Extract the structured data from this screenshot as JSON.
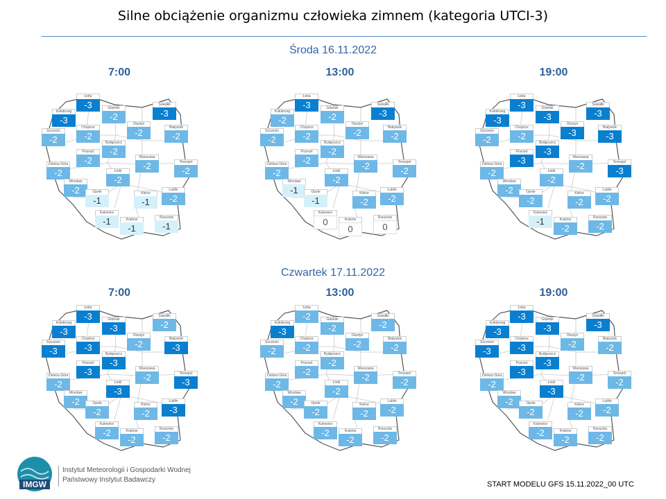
{
  "title": "Silne obciążenie organizmu człowieka zimnem (kategoria UTCI-3)",
  "days": [
    {
      "label": "Środa 16.11.2022",
      "panels": [
        {
          "time": "7:00",
          "values": {
            "leba": "-3",
            "gdansk": "-2",
            "suwalki": "-3",
            "kolobrzeg": "-3",
            "szczecin": "-2",
            "chojnice": "-2",
            "olsztyn": "-2",
            "bialystok": "-2",
            "bydgoszcz": "-2",
            "poznan": "-2",
            "zielona_gora": "-2",
            "warszawa": "-2",
            "terespol": "-2",
            "lodz": "-2",
            "wroclaw": "-2",
            "opole": "-1",
            "kielce": "-1",
            "lublin": "-2",
            "katowice": "-1",
            "krakow": "-1",
            "rzeszow": "-1"
          }
        },
        {
          "time": "13:00",
          "values": {
            "leba": "-3",
            "gdansk": "-2",
            "suwalki": "-3",
            "kolobrzeg": "-2",
            "szczecin": "-2",
            "chojnice": "-2",
            "olsztyn": "-2",
            "bialystok": "-2",
            "bydgoszcz": "-2",
            "poznan": "-2",
            "zielona_gora": "-2",
            "warszawa": "-2",
            "terespol": "-2",
            "lodz": "-2",
            "wroclaw": "-1",
            "opole": "-1",
            "kielce": "-2",
            "lublin": "-2",
            "katowice": "0",
            "krakow": "0",
            "rzeszow": "0"
          }
        },
        {
          "time": "19:00",
          "values": {
            "leba": "-3",
            "gdansk": "-3",
            "suwalki": "-3",
            "kolobrzeg": "-3",
            "szczecin": "-2",
            "chojnice": "-2",
            "olsztyn": "-3",
            "bialystok": "-3",
            "bydgoszcz": "-3",
            "poznan": "-3",
            "zielona_gora": "-2",
            "warszawa": "-2",
            "terespol": "-3",
            "lodz": "-2",
            "wroclaw": "-2",
            "opole": "-2",
            "kielce": "-2",
            "lublin": "-2",
            "katowice": "-1",
            "krakow": "-2",
            "rzeszow": "-2"
          }
        }
      ]
    },
    {
      "label": "Czwartek 17.11.2022",
      "panels": [
        {
          "time": "7:00",
          "values": {
            "leba": "-3",
            "gdansk": "-3",
            "suwalki": "-2",
            "kolobrzeg": "-3",
            "szczecin": "-3",
            "chojnice": "-3",
            "olsztyn": "-2",
            "bialystok": "-3",
            "bydgoszcz": "-3",
            "poznan": "-3",
            "zielona_gora": "-2",
            "warszawa": "-2",
            "terespol": "-3",
            "lodz": "-3",
            "wroclaw": "-2",
            "opole": "-2",
            "kielce": "-2",
            "lublin": "-3",
            "katowice": "-2",
            "krakow": "-2",
            "rzeszow": "-2"
          }
        },
        {
          "time": "13:00",
          "values": {
            "leba": "-2",
            "gdansk": "-2",
            "suwalki": "-2",
            "kolobrzeg": "-3",
            "szczecin": "-2",
            "chojnice": "-2",
            "olsztyn": "-2",
            "bialystok": "-2",
            "bydgoszcz": "-2",
            "poznan": "-2",
            "zielona_gora": "-2",
            "warszawa": "-2",
            "terespol": "-2",
            "lodz": "-2",
            "wroclaw": "-2",
            "opole": "-2",
            "kielce": "-2",
            "lublin": "-2",
            "katowice": "-2",
            "krakow": "-2",
            "rzeszow": "-2"
          }
        },
        {
          "time": "19:00",
          "values": {
            "leba": "-3",
            "gdansk": "-3",
            "suwalki": "-3",
            "kolobrzeg": "-3",
            "szczecin": "-3",
            "chojnice": "-3",
            "olsztyn": "-2",
            "bialystok": "-2",
            "bydgoszcz": "-3",
            "poznan": "-3",
            "zielona_gora": "-2",
            "warszawa": "-2",
            "terespol": "-2",
            "lodz": "-3",
            "wroclaw": "-2",
            "opole": "-2",
            "kielce": "-2",
            "lublin": "-2",
            "katowice": "-2",
            "krakow": "-2",
            "rzeszow": "-2"
          }
        }
      ]
    }
  ],
  "city_names": {
    "leba": "Łeba",
    "gdansk": "Gdańsk",
    "suwalki": "Suwałki",
    "kolobrzeg": "Kołobrzeg",
    "szczecin": "Szczecin",
    "chojnice": "Chojnice",
    "olsztyn": "Olsztyn",
    "bialystok": "Białystok",
    "bydgoszcz": "Bydgoszcz",
    "poznan": "Poznań",
    "zielona_gora": "Zielona Góra",
    "warszawa": "Warszawa",
    "terespol": "Terespol",
    "lodz": "Łódź",
    "wroclaw": "Wrocław",
    "opole": "Opole",
    "kielce": "Kielce",
    "lublin": "Lublin",
    "katowice": "Katowice",
    "krakow": "Kraków",
    "rzeszow": "Rzeszów"
  },
  "colors": {
    "-3": "#0a7fd0",
    "-2": "#6db8e6",
    "-1": "#d4f1fa",
    "0": "#ffffff"
  },
  "logo": {
    "text": "IMGW"
  },
  "institute": {
    "line1": "Instytut Meteorologii i Gospodarki Wodnej",
    "line2": "Państwowy Instytut Badawczy"
  },
  "footer": "START MODELU GFS 15.11.2022_00  UTC"
}
